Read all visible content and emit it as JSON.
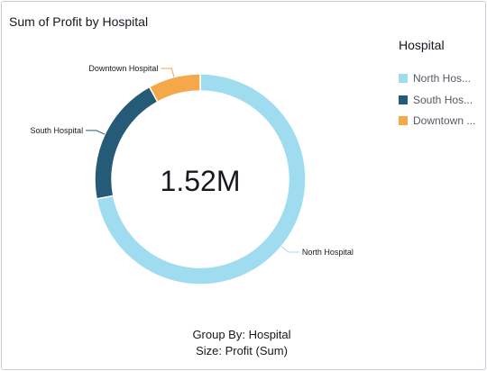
{
  "title": "Sum of Profit by Hospital",
  "center_total": "1.52M",
  "legend": {
    "title": "Hospital",
    "items": [
      {
        "label": "North Hos...",
        "color": "#a0dcf0"
      },
      {
        "label": "South Hos...",
        "color": "#265b78"
      },
      {
        "label": "Downtown ...",
        "color": "#f4a84a"
      }
    ]
  },
  "footer": {
    "group_by": "Group By: Hospital",
    "size": "Size: Profit (Sum)"
  },
  "chart_data": {
    "type": "pie",
    "title": "Sum of Profit by Hospital",
    "donut": true,
    "total_label": "1.52M",
    "categories": [
      "North Hospital",
      "South Hospital",
      "Downtown Hospital"
    ],
    "values": [
      0.72,
      0.2,
      0.08
    ],
    "colors": [
      "#a0dcf0",
      "#265b78",
      "#f4a84a"
    ],
    "legend_position": "right"
  }
}
